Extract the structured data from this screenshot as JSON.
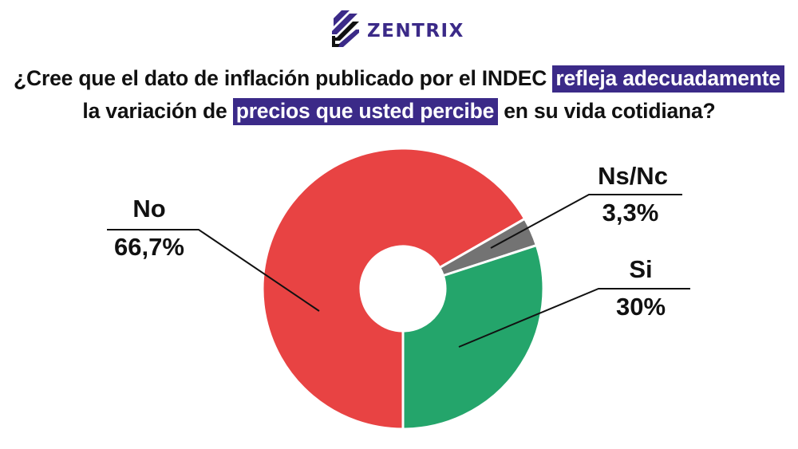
{
  "brand": {
    "name": "ZENTRIX",
    "color": "#3b2a88",
    "icon": "zentrix-stripes-logo"
  },
  "title": {
    "part1": "¿Cree que el dato de inflación publicado por el INDEC ",
    "highlight1": "refleja adecuadamente",
    "part2": "la variación de ",
    "highlight2": "precios que usted percibe",
    "part3": " en su vida cotidiana?",
    "highlight_color": "#3b2a88"
  },
  "chart_data": {
    "type": "pie",
    "variant": "donut",
    "title": "¿Cree que el dato de inflación publicado por el INDEC refleja adecuadamente la variación de precios que usted percibe en su vida cotidiana?",
    "categories": [
      "No",
      "Ns/Nc",
      "Si"
    ],
    "values": [
      66.7,
      3.3,
      30
    ],
    "labels": [
      "66,7%",
      "3,3%",
      "30%"
    ],
    "colors": [
      "#e84343",
      "#737373",
      "#24a56b"
    ],
    "start_angle_deg": 180,
    "direction": "clockwise",
    "legend": "none (leader-line labels)"
  },
  "labels": [
    {
      "name": "No",
      "value": "66,7%"
    },
    {
      "name": "Ns/Nc",
      "value": "3,3%"
    },
    {
      "name": "Si",
      "value": "30%"
    }
  ]
}
